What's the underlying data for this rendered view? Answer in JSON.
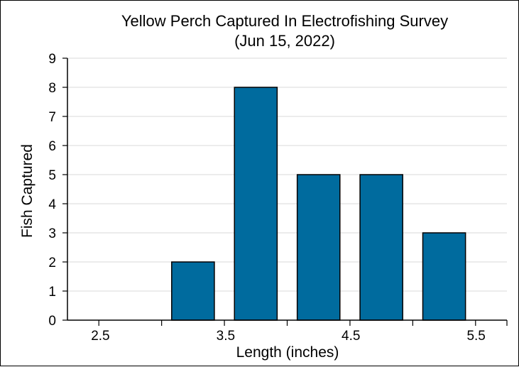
{
  "chart_data": {
    "type": "bar",
    "title": "Yellow Perch Captured In Electrofishing Survey",
    "subtitle": "(Jun 15, 2022)",
    "xlabel": "Length (inches)",
    "ylabel": "Fish Captured",
    "x_tick_labels": [
      "2.5",
      "3.5",
      "4.5",
      "5.5"
    ],
    "y_ticks": [
      0,
      1,
      2,
      3,
      4,
      5,
      6,
      7,
      8,
      9
    ],
    "ylim": [
      0,
      9
    ],
    "categories": [
      "2.5–3.0",
      "3.0–3.5",
      "3.5–4.0",
      "4.0–4.5",
      "4.5–5.0",
      "5.0–5.5"
    ],
    "values": [
      0,
      2,
      8,
      5,
      5,
      3
    ],
    "bar_color": "#006b9e",
    "grid": true,
    "legend": "none"
  }
}
